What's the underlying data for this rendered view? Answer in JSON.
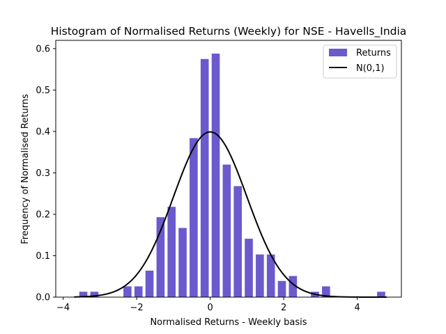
{
  "chart_data": {
    "type": "bar",
    "title": "Histogram of Normalised Returns (Weekly) for NSE - Havells_India",
    "xlabel": "Normalised Returns - Weekly basis",
    "ylabel": "Frequency of Normalised Returns",
    "xlim": [
      -4.2,
      5.2
    ],
    "ylim": [
      0,
      0.62
    ],
    "xticks": [
      -4,
      -2,
      0,
      2,
      4
    ],
    "yticks": [
      0.0,
      0.1,
      0.2,
      0.3,
      0.4,
      0.5,
      0.6
    ],
    "xtick_labels": [
      "−4",
      "−2",
      "0",
      "2",
      "4"
    ],
    "ytick_labels": [
      "0.0",
      "0.1",
      "0.2",
      "0.3",
      "0.4",
      "0.5",
      "0.6"
    ],
    "legend_position": "top-right",
    "bar_width": 0.25,
    "series": [
      {
        "name": "Returns",
        "kind": "bar",
        "color": "#6a5acd",
        "x": [
          -3.45,
          -3.15,
          -2.25,
          -1.95,
          -1.65,
          -1.35,
          -1.05,
          -0.75,
          -0.45,
          -0.15,
          0.15,
          0.45,
          0.75,
          1.05,
          1.35,
          1.65,
          1.95,
          2.25,
          2.85,
          3.15,
          4.65
        ],
        "values": [
          0.013,
          0.013,
          0.026,
          0.026,
          0.064,
          0.193,
          0.218,
          0.167,
          0.384,
          0.575,
          0.588,
          0.32,
          0.268,
          0.141,
          0.103,
          0.103,
          0.039,
          0.051,
          0.013,
          0.026,
          0.013
        ]
      },
      {
        "name": "N(0,1)",
        "kind": "line",
        "color": "#000000",
        "x_range": [
          -3.7,
          4.8
        ]
      }
    ]
  }
}
